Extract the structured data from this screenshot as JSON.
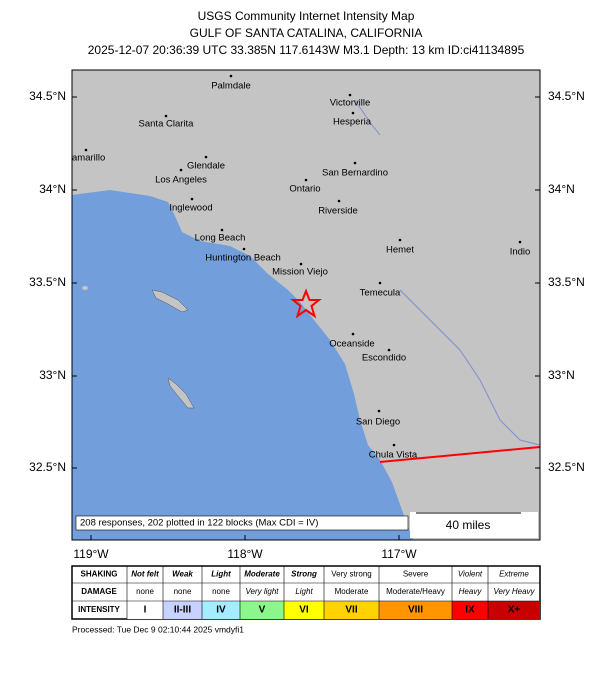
{
  "header": {
    "title": "USGS Community Internet Intensity Map",
    "region": "GULF OF SANTA CATALINA, CALIFORNIA",
    "details": "2025-12-07 20:36:39 UTC 33.385N 117.6143W M3.1 Depth: 13 km ID:ci41134895"
  },
  "map": {
    "lat_labels": [
      "34.5°N",
      "34°N",
      "33.5°N",
      "33°N",
      "32.5°N"
    ],
    "lon_labels": [
      "119°W",
      "118°W",
      "117°W"
    ],
    "places": [
      {
        "label": "Palmdale"
      },
      {
        "label": "Victorville"
      },
      {
        "label": "Hesperia"
      },
      {
        "label": "Santa Clarita"
      },
      {
        "label": "Glendale"
      },
      {
        "label": "San Bernardino"
      },
      {
        "label": "amarillo"
      },
      {
        "label": "Los Angeles"
      },
      {
        "label": "Ontario"
      },
      {
        "label": "Inglewood"
      },
      {
        "label": "Riverside"
      },
      {
        "label": "Long Beach"
      },
      {
        "label": "Hemet"
      },
      {
        "label": "Indio"
      },
      {
        "label": "Huntington Beach"
      },
      {
        "label": "Mission Viejo"
      },
      {
        "label": "Temecula"
      },
      {
        "label": "Oceanside"
      },
      {
        "label": "Escondido"
      },
      {
        "label": "San Diego"
      },
      {
        "label": "Chula Vista"
      }
    ],
    "response_note": "208 responses, 202 plotted in 122 blocks (Max CDI = IV)",
    "scale_label": "40 miles"
  },
  "legend": {
    "row_headers": [
      "SHAKING",
      "DAMAGE",
      "INTENSITY"
    ],
    "shaking": [
      "Not felt",
      "Weak",
      "Light",
      "Moderate",
      "Strong",
      "Very strong",
      "Severe",
      "Violent",
      "Extreme"
    ],
    "damage": [
      "none",
      "none",
      "none",
      "Very light",
      "Light",
      "Moderate",
      "Moderate/Heavy",
      "Heavy",
      "Very Heavy"
    ],
    "intensity": [
      "I",
      "II-III",
      "IV",
      "V",
      "VI",
      "VII",
      "VIII",
      "IX",
      "X+"
    ]
  },
  "footer": {
    "processed": "Processed: Tue Dec  9 02:10:44 2025 vmdyfi1"
  }
}
